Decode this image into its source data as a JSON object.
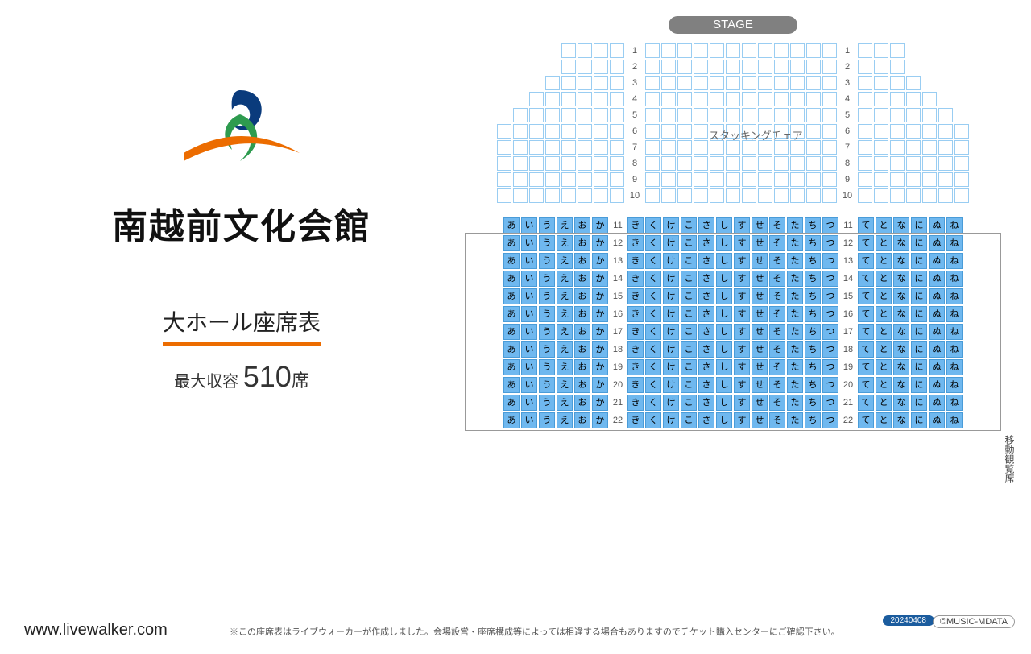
{
  "venue": {
    "name": "南越前文化会館",
    "hall_title": "大ホール座席表",
    "capacity_prefix": "最大収容 ",
    "capacity_num": "510",
    "capacity_unit": "席"
  },
  "stage_label": "STAGE",
  "stacking_label": "スタッキングチェア",
  "side_label": "移動観覧席",
  "upper": {
    "rows": [
      {
        "n": 1,
        "L": 4,
        "C": 12,
        "R": 3
      },
      {
        "n": 2,
        "L": 4,
        "C": 12,
        "R": 3
      },
      {
        "n": 3,
        "L": 5,
        "C": 12,
        "R": 4
      },
      {
        "n": 4,
        "L": 6,
        "C": 12,
        "R": 5
      },
      {
        "n": 5,
        "L": 7,
        "C": 12,
        "R": 6
      },
      {
        "n": 6,
        "L": 8,
        "C": 12,
        "R": 7
      },
      {
        "n": 7,
        "L": 8,
        "C": 12,
        "R": 7
      },
      {
        "n": 8,
        "L": 8,
        "C": 12,
        "R": 7
      },
      {
        "n": 9,
        "L": 8,
        "C": 12,
        "R": 7
      },
      {
        "n": 10,
        "L": 8,
        "C": 12,
        "R": 7
      }
    ],
    "left_max": 8,
    "right_max": 7
  },
  "lower": {
    "left_cols": [
      "あ",
      "い",
      "う",
      "え",
      "お",
      "か"
    ],
    "mid_cols": [
      "き",
      "く",
      "け",
      "こ",
      "さ",
      "し",
      "す",
      "せ",
      "そ",
      "た",
      "ち",
      "つ"
    ],
    "right_cols": [
      "て",
      "と",
      "な",
      "に",
      "ぬ",
      "ね"
    ],
    "row_start": 11,
    "row_end": 22
  },
  "colors": {
    "accent": "#ec6c00",
    "seat_empty_border": "#99cdf2",
    "seat_fill": "#6fb8ef",
    "seat_fill_border": "#4a9cd8",
    "stage_bg": "#808080",
    "badge_bg": "#1b5c9e",
    "logo_blue": "#0a3b7c",
    "logo_green": "#2e9b4f",
    "logo_orange": "#ec6c00"
  },
  "footer": {
    "url": "www.livewalker.com",
    "note": "※この座席表はライブウォーカーが作成しました。会場設営・座席構成等によっては相違する場合もありますのでチケット購入センターにご確認下さい。",
    "date": "20240408",
    "copyright": "©MUSIC-MDATA"
  }
}
